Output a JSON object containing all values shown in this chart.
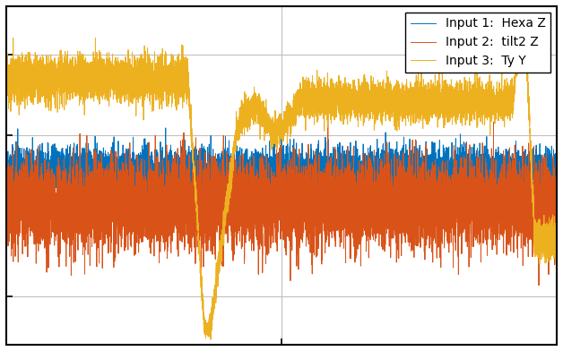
{
  "title": "",
  "legend_labels": [
    "Input 1:  Hexa Z",
    "Input 2:  tilt2 Z",
    "Input 3:  Ty Y"
  ],
  "colors": [
    "#0072BD",
    "#D95319",
    "#EDB120"
  ],
  "line_width": 0.7,
  "background_color": "#ffffff",
  "fig_background_color": "#ffffff",
  "grid_color": "#c0c0c0",
  "ylim": [
    -1.05,
    1.05
  ],
  "xlim": [
    0,
    10000
  ],
  "figsize": [
    6.28,
    3.92
  ],
  "dpi": 100,
  "n_points": 10000,
  "seed": 42
}
